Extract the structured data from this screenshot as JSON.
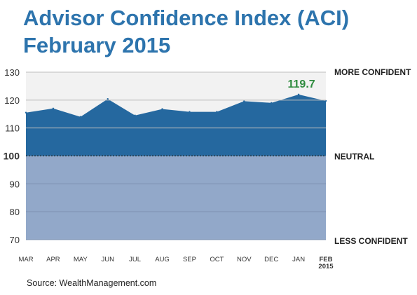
{
  "title_lines": [
    "Advisor Confidence Index (ACI)",
    "February 2015"
  ],
  "source": "Source: WealthManagement.com",
  "colors": {
    "title": "#2d74ad",
    "above_band": "#f2f2f2",
    "below_band": "#92a8c9",
    "series_fill": "#25689f",
    "latest_label": "#2e8b3e"
  },
  "chart_data": {
    "type": "area",
    "title": "Advisor Confidence Index (ACI) February 2015",
    "categories": [
      "MAR",
      "APR",
      "MAY",
      "JUN",
      "JUL",
      "AUG",
      "SEP",
      "OCT",
      "NOV",
      "DEC",
      "JAN",
      "FEB 2015"
    ],
    "series": [
      {
        "name": "",
        "values": [
          115.5,
          117,
          114,
          120.4,
          114.5,
          116.8,
          115.8,
          115.8,
          119.6,
          119,
          122,
          119.7
        ]
      }
    ],
    "baseline": 100,
    "ylim": [
      70,
      130
    ],
    "yticks": [
      130,
      120,
      110,
      100,
      90,
      80,
      70
    ],
    "grid": true,
    "right_labels": {
      "top": "MORE CONFIDENT",
      "middle": "NEUTRAL",
      "bottom": "LESS CONFIDENT"
    },
    "annotation": {
      "category": "JAN",
      "text": "119.7"
    }
  }
}
